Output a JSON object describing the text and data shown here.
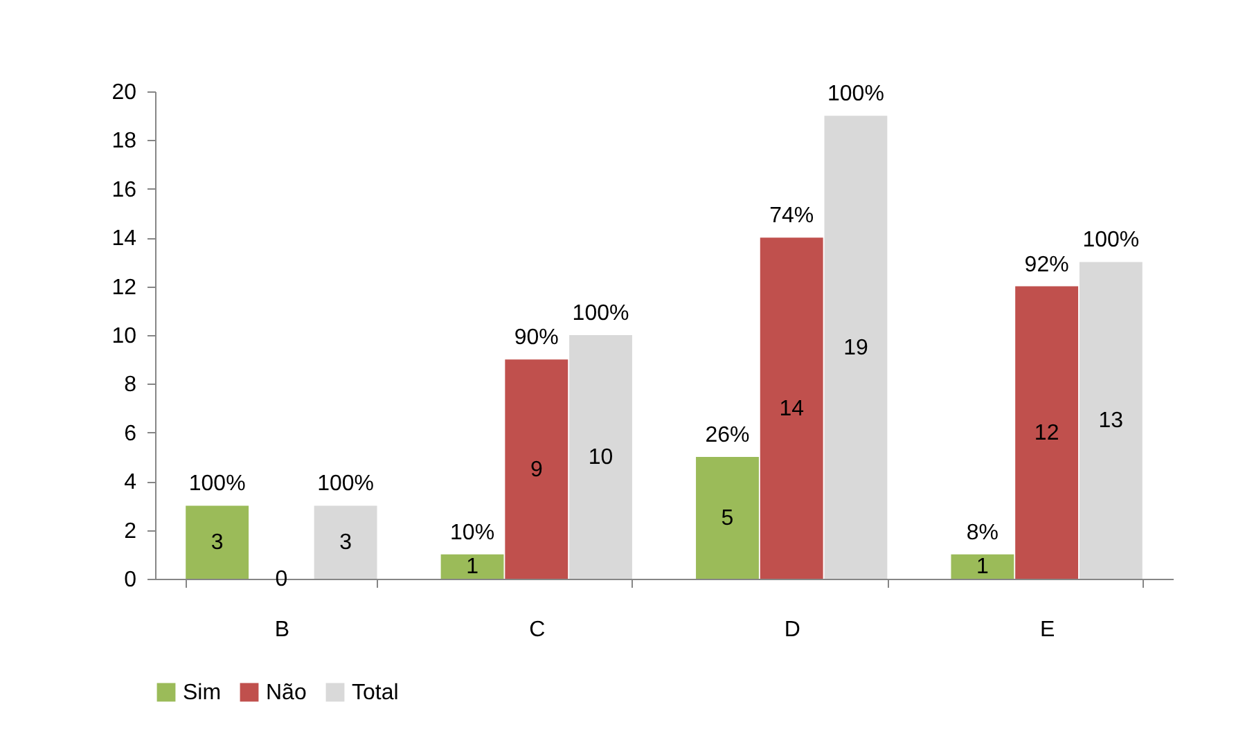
{
  "chart_data": {
    "type": "bar",
    "categories": [
      "B",
      "C",
      "D",
      "E"
    ],
    "series": [
      {
        "name": "Sim",
        "color": "#9bbb59",
        "values": [
          3,
          1,
          5,
          1
        ]
      },
      {
        "name": "Não",
        "color": "#c0504d",
        "values": [
          0,
          9,
          14,
          12
        ]
      },
      {
        "name": "Total",
        "color": "#d9d9d9",
        "values": [
          3,
          10,
          19,
          13
        ]
      }
    ],
    "annotations": [
      "100%",
      "100%",
      "10%",
      "90%",
      "100%",
      "26%",
      "74%",
      "100%",
      "8%",
      "92%",
      "100%"
    ],
    "ylim": [
      0,
      20
    ],
    "yticks": [
      0,
      2,
      4,
      6,
      8,
      10,
      12,
      14,
      16,
      18,
      20
    ],
    "grid": false,
    "legend": "bottom",
    "data_labels": true
  }
}
